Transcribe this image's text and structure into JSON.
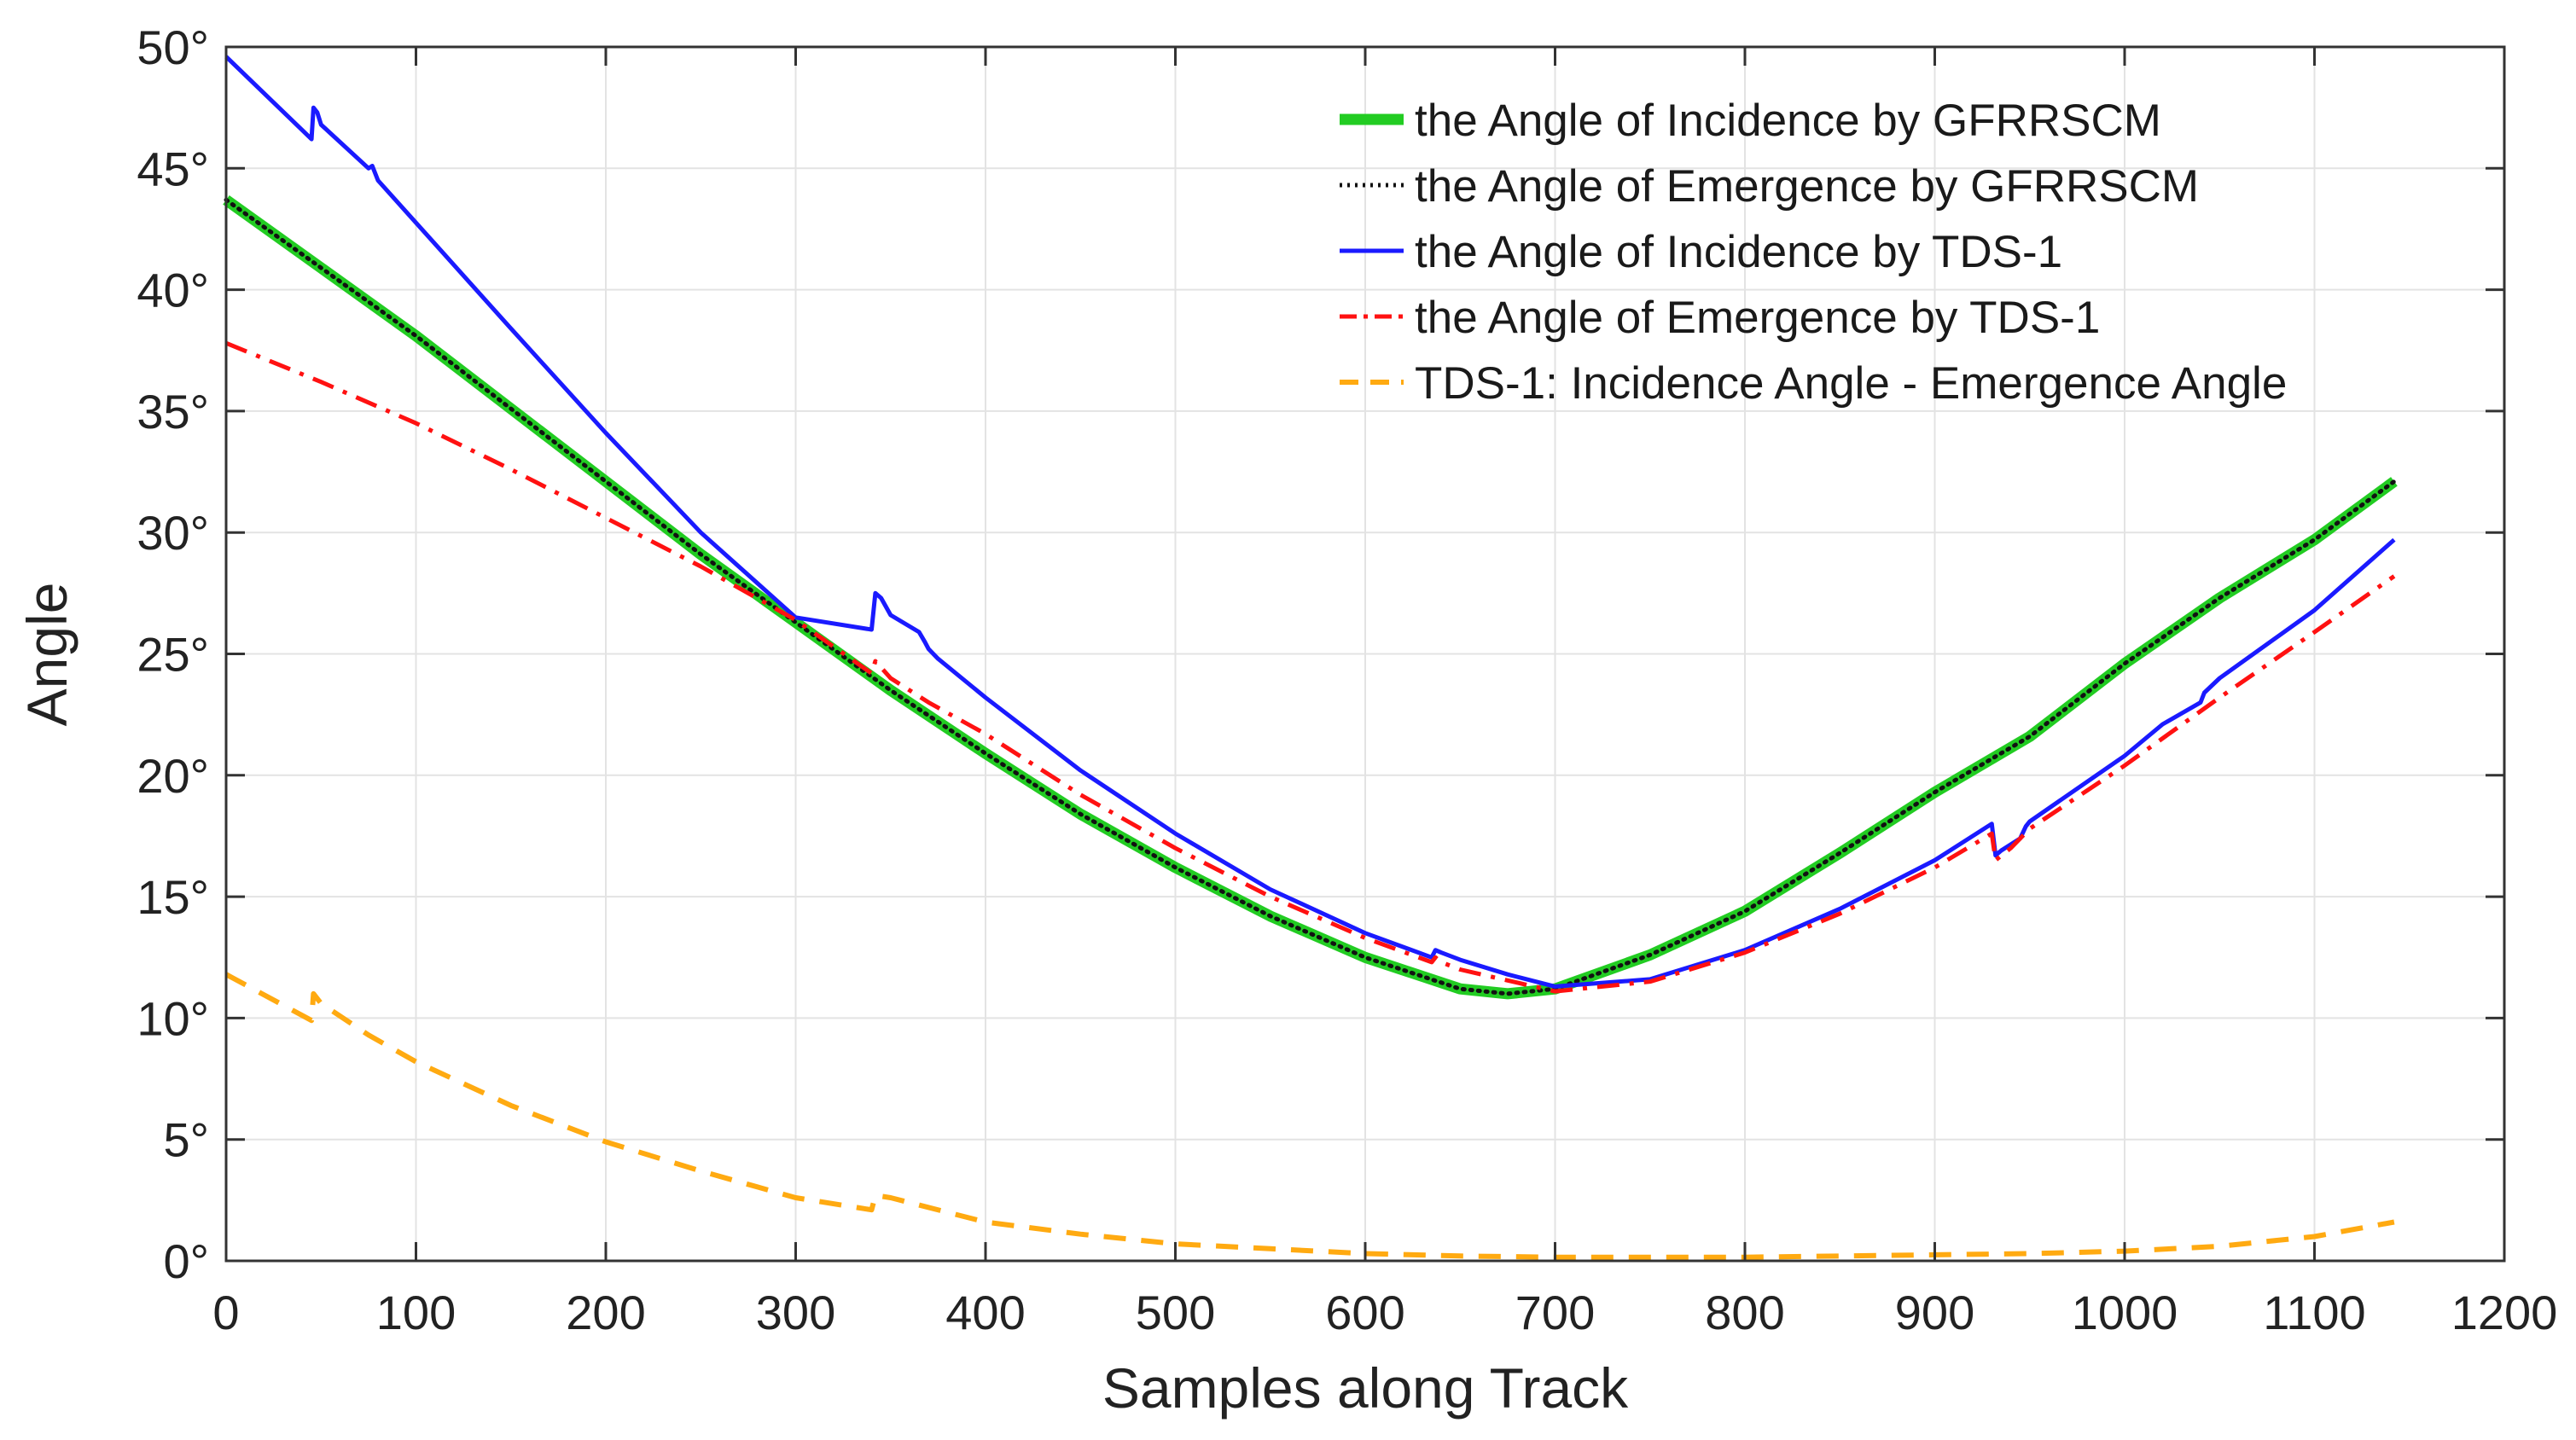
{
  "chart_data": {
    "type": "line",
    "xlabel": "Samples along Track",
    "ylabel": "Angle",
    "xlim": [
      0,
      1200
    ],
    "ylim": [
      0,
      50
    ],
    "grid": true,
    "x_ticks": [
      0,
      100,
      200,
      300,
      400,
      500,
      600,
      700,
      800,
      900,
      1000,
      1100,
      1200
    ],
    "x_tick_labels": [
      "0",
      "100",
      "200",
      "300",
      "400",
      "500",
      "600",
      "700",
      "800",
      "900",
      "1000",
      "1100",
      "1200"
    ],
    "y_ticks": [
      0,
      5,
      10,
      15,
      20,
      25,
      30,
      35,
      40,
      45,
      50
    ],
    "y_tick_labels": [
      "0°",
      "5°",
      "10°",
      "15°",
      "20°",
      "25°",
      "30°",
      "35°",
      "40°",
      "45°",
      "50°"
    ],
    "legend_position": "top-right",
    "series": [
      {
        "name": "the Angle of Incidence by GFRRSCM",
        "color": "#22cc22",
        "style": "solid-thick",
        "points": [
          [
            0,
            43.7
          ],
          [
            50,
            40.9
          ],
          [
            100,
            38.1
          ],
          [
            150,
            35.1
          ],
          [
            200,
            32.1
          ],
          [
            250,
            29.1
          ],
          [
            300,
            26.3
          ],
          [
            350,
            23.5
          ],
          [
            400,
            20.9
          ],
          [
            450,
            18.4
          ],
          [
            500,
            16.2
          ],
          [
            550,
            14.2
          ],
          [
            600,
            12.5
          ],
          [
            650,
            11.2
          ],
          [
            675,
            11.0
          ],
          [
            700,
            11.2
          ],
          [
            750,
            12.6
          ],
          [
            800,
            14.4
          ],
          [
            850,
            16.8
          ],
          [
            900,
            19.3
          ],
          [
            950,
            21.6
          ],
          [
            1000,
            24.6
          ],
          [
            1050,
            27.3
          ],
          [
            1100,
            29.7
          ],
          [
            1142,
            32.1
          ]
        ]
      },
      {
        "name": "the Angle of Emergence by GFRRSCM",
        "color": "#111111",
        "style": "dotted",
        "points": [
          [
            0,
            43.7
          ],
          [
            50,
            40.9
          ],
          [
            100,
            38.1
          ],
          [
            150,
            35.1
          ],
          [
            200,
            32.1
          ],
          [
            250,
            29.1
          ],
          [
            300,
            26.3
          ],
          [
            350,
            23.5
          ],
          [
            400,
            20.9
          ],
          [
            450,
            18.4
          ],
          [
            500,
            16.2
          ],
          [
            550,
            14.2
          ],
          [
            600,
            12.5
          ],
          [
            650,
            11.2
          ],
          [
            675,
            11.0
          ],
          [
            700,
            11.2
          ],
          [
            750,
            12.6
          ],
          [
            800,
            14.4
          ],
          [
            850,
            16.8
          ],
          [
            900,
            19.3
          ],
          [
            950,
            21.6
          ],
          [
            1000,
            24.6
          ],
          [
            1050,
            27.3
          ],
          [
            1100,
            29.7
          ],
          [
            1142,
            32.1
          ]
        ]
      },
      {
        "name": "the Angle of Incidence by TDS-1",
        "color": "#1a1aff",
        "style": "solid",
        "points": [
          [
            0,
            49.6
          ],
          [
            45,
            46.2
          ],
          [
            46,
            47.5
          ],
          [
            48,
            47.3
          ],
          [
            50,
            46.8
          ],
          [
            75,
            45.0
          ],
          [
            77,
            45.1
          ],
          [
            80,
            44.5
          ],
          [
            150,
            38.4
          ],
          [
            200,
            34.1
          ],
          [
            250,
            30.0
          ],
          [
            300,
            26.5
          ],
          [
            340,
            26.0
          ],
          [
            342,
            27.5
          ],
          [
            345,
            27.3
          ],
          [
            350,
            26.6
          ],
          [
            365,
            25.9
          ],
          [
            368,
            25.5
          ],
          [
            370,
            25.2
          ],
          [
            375,
            24.8
          ],
          [
            400,
            23.2
          ],
          [
            450,
            20.2
          ],
          [
            500,
            17.6
          ],
          [
            550,
            15.3
          ],
          [
            600,
            13.5
          ],
          [
            635,
            12.5
          ],
          [
            637,
            12.8
          ],
          [
            640,
            12.7
          ],
          [
            650,
            12.4
          ],
          [
            675,
            11.8
          ],
          [
            700,
            11.3
          ],
          [
            750,
            11.6
          ],
          [
            800,
            12.8
          ],
          [
            850,
            14.5
          ],
          [
            900,
            16.5
          ],
          [
            930,
            18.0
          ],
          [
            932,
            16.7
          ],
          [
            935,
            16.9
          ],
          [
            945,
            17.4
          ],
          [
            948,
            17.9
          ],
          [
            950,
            18.1
          ],
          [
            1000,
            20.8
          ],
          [
            1020,
            22.1
          ],
          [
            1040,
            23.0
          ],
          [
            1042,
            23.4
          ],
          [
            1050,
            24.0
          ],
          [
            1100,
            26.8
          ],
          [
            1142,
            29.7
          ]
        ]
      },
      {
        "name": "the Angle of Emergence by TDS-1",
        "color": "#ff1111",
        "style": "dashdot",
        "points": [
          [
            0,
            37.8
          ],
          [
            50,
            36.2
          ],
          [
            100,
            34.5
          ],
          [
            150,
            32.6
          ],
          [
            200,
            30.6
          ],
          [
            250,
            28.6
          ],
          [
            300,
            26.4
          ],
          [
            340,
            24.2
          ],
          [
            342,
            24.7
          ],
          [
            350,
            24.0
          ],
          [
            370,
            23.0
          ],
          [
            400,
            21.7
          ],
          [
            450,
            19.2
          ],
          [
            500,
            17.0
          ],
          [
            550,
            15.0
          ],
          [
            600,
            13.3
          ],
          [
            635,
            12.3
          ],
          [
            637,
            12.5
          ],
          [
            640,
            12.3
          ],
          [
            650,
            12.0
          ],
          [
            700,
            11.1
          ],
          [
            750,
            11.5
          ],
          [
            800,
            12.7
          ],
          [
            850,
            14.3
          ],
          [
            900,
            16.2
          ],
          [
            930,
            17.6
          ],
          [
            932,
            16.5
          ],
          [
            940,
            17.0
          ],
          [
            950,
            17.8
          ],
          [
            1000,
            20.4
          ],
          [
            1050,
            23.2
          ],
          [
            1100,
            25.9
          ],
          [
            1142,
            28.2
          ]
        ]
      },
      {
        "name": "TDS-1: Incidence Angle - Emergence Angle",
        "color": "#ffaa11",
        "style": "dashed",
        "points": [
          [
            0,
            11.8
          ],
          [
            45,
            9.9
          ],
          [
            46,
            11.0
          ],
          [
            50,
            10.6
          ],
          [
            75,
            9.3
          ],
          [
            100,
            8.2
          ],
          [
            150,
            6.4
          ],
          [
            200,
            4.9
          ],
          [
            250,
            3.7
          ],
          [
            300,
            2.6
          ],
          [
            340,
            2.1
          ],
          [
            342,
            2.7
          ],
          [
            350,
            2.6
          ],
          [
            400,
            1.6
          ],
          [
            450,
            1.1
          ],
          [
            500,
            0.7
          ],
          [
            550,
            0.5
          ],
          [
            600,
            0.3
          ],
          [
            650,
            0.2
          ],
          [
            700,
            0.15
          ],
          [
            750,
            0.15
          ],
          [
            800,
            0.15
          ],
          [
            850,
            0.2
          ],
          [
            900,
            0.25
          ],
          [
            950,
            0.3
          ],
          [
            1000,
            0.4
          ],
          [
            1050,
            0.6
          ],
          [
            1100,
            1.0
          ],
          [
            1142,
            1.6
          ]
        ]
      }
    ]
  }
}
